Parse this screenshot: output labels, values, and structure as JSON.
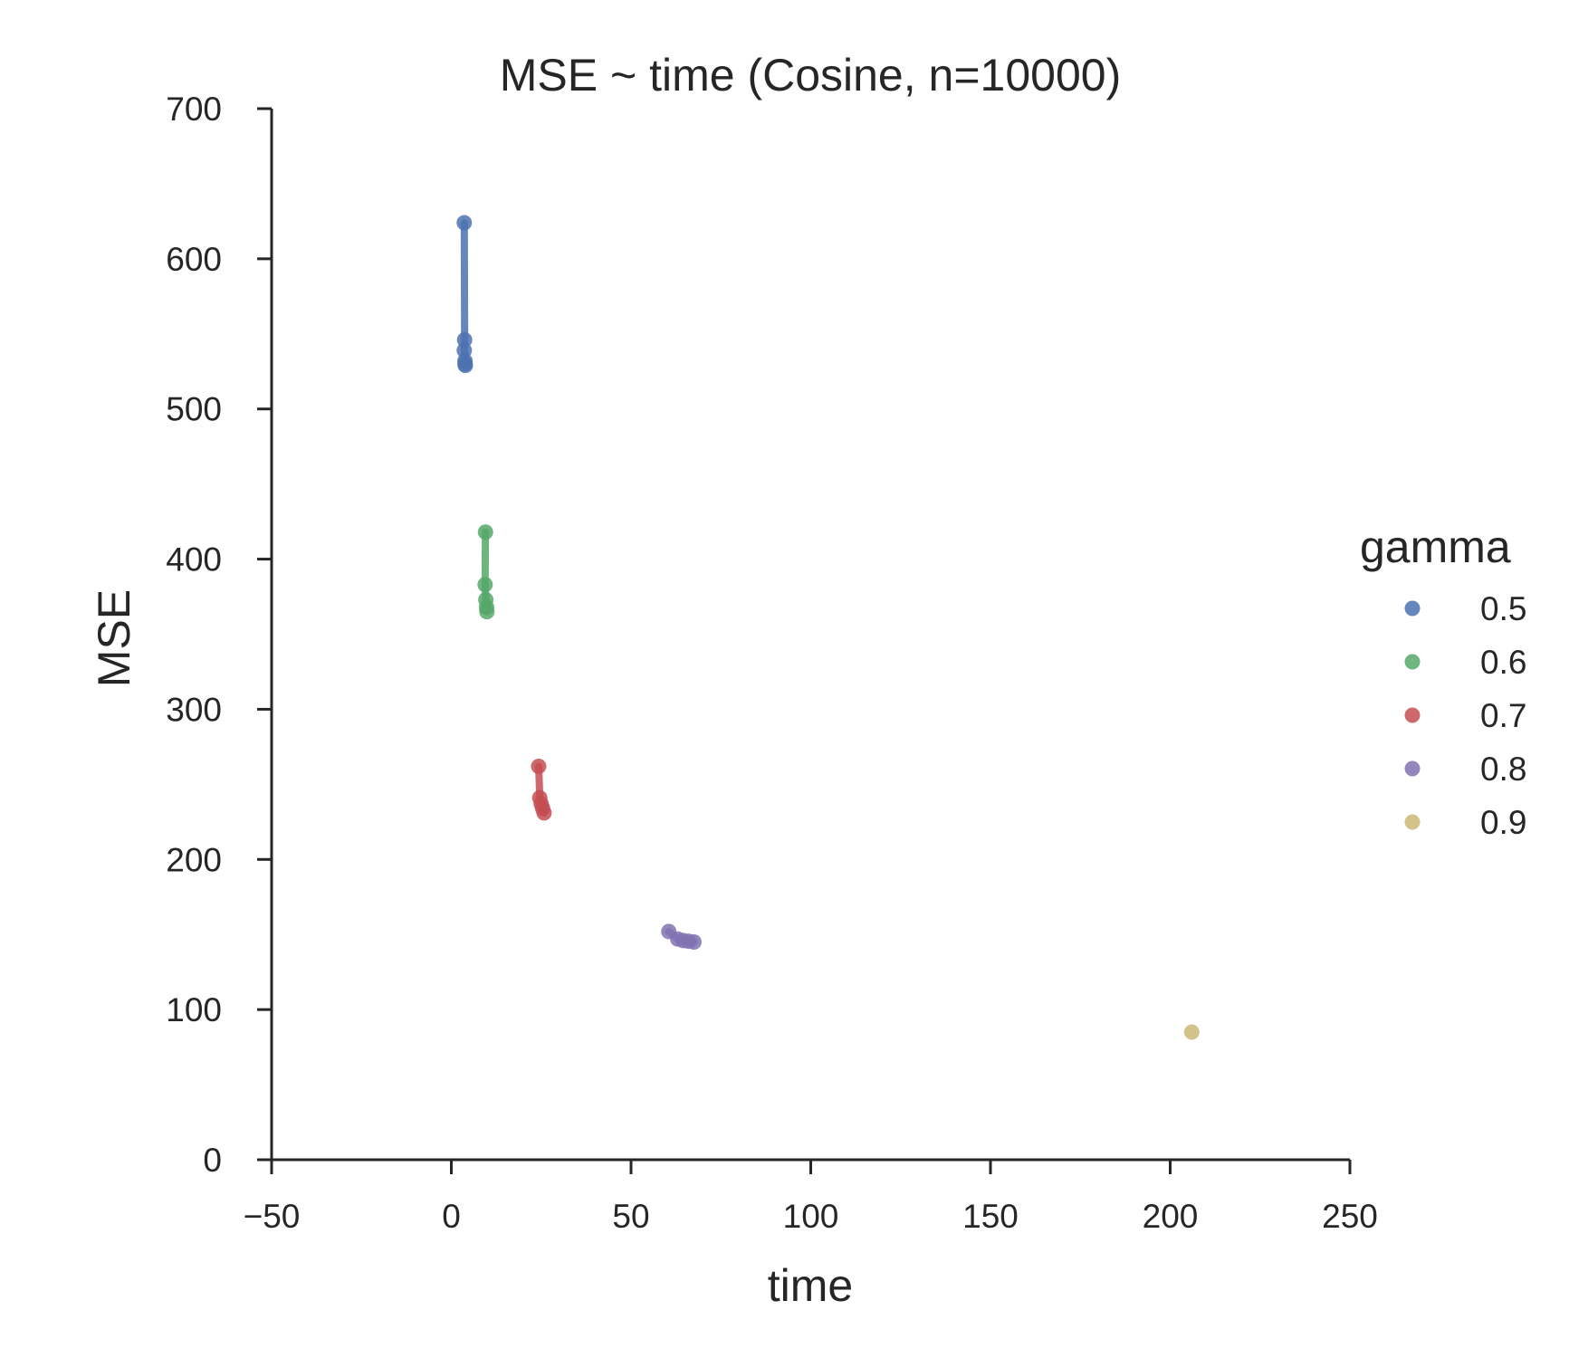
{
  "chart_data": {
    "type": "scatter",
    "title": "MSE ~ time (Cosine, n=10000)",
    "xlabel": "time",
    "ylabel": "MSE",
    "xlim": [
      -50,
      250
    ],
    "ylim": [
      0,
      700
    ],
    "xticks": [
      -50,
      0,
      50,
      100,
      150,
      200,
      250
    ],
    "xtick_labels": [
      "−50",
      "0",
      "50",
      "100",
      "150",
      "200",
      "250"
    ],
    "yticks": [
      0,
      100,
      200,
      300,
      400,
      500,
      600,
      700
    ],
    "ytick_labels": [
      "0",
      "100",
      "200",
      "300",
      "400",
      "500",
      "600",
      "700"
    ],
    "grid": false,
    "legend": {
      "title": "gamma",
      "position": "right"
    },
    "series": [
      {
        "name": "0.5",
        "color": "#4c72b0",
        "points": [
          [
            3.6,
            624
          ],
          [
            3.7,
            546
          ],
          [
            3.6,
            539
          ],
          [
            3.8,
            532
          ],
          [
            3.8,
            530
          ],
          [
            3.9,
            529
          ]
        ]
      },
      {
        "name": "0.6",
        "color": "#55a868",
        "points": [
          [
            9.5,
            418
          ],
          [
            9.4,
            383
          ],
          [
            9.6,
            373
          ],
          [
            9.8,
            368
          ],
          [
            9.9,
            365
          ]
        ]
      },
      {
        "name": "0.7",
        "color": "#c44e52",
        "points": [
          [
            24.3,
            262
          ],
          [
            24.6,
            241
          ],
          [
            25.0,
            237
          ],
          [
            25.4,
            234
          ],
          [
            25.8,
            231
          ]
        ]
      },
      {
        "name": "0.8",
        "color": "#8172b2",
        "points": [
          [
            60.5,
            152
          ],
          [
            63.0,
            147
          ],
          [
            64.5,
            146
          ],
          [
            66.0,
            145.5
          ],
          [
            67.5,
            145
          ]
        ]
      },
      {
        "name": "0.9",
        "color": "#ccb974",
        "points": [
          [
            206.0,
            85
          ]
        ]
      }
    ]
  }
}
